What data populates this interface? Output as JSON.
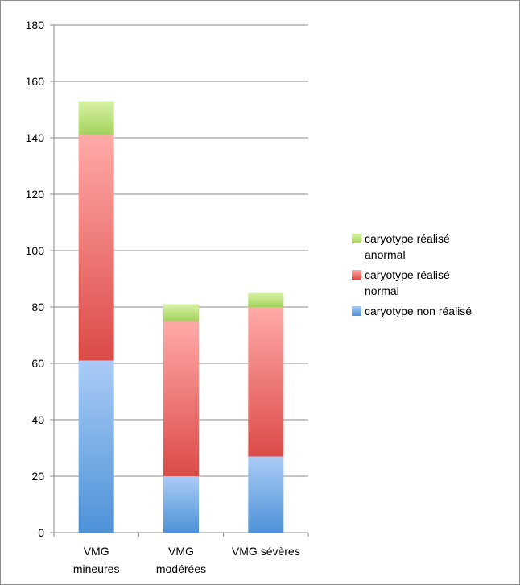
{
  "chart_data": {
    "type": "bar",
    "stacked": true,
    "categories": [
      [
        "VMG",
        "mineures"
      ],
      [
        "VMG",
        "modérées"
      ],
      [
        "VMG sévères"
      ]
    ],
    "series": [
      {
        "name": "caryotype non réalisé",
        "values": [
          61,
          20,
          27
        ],
        "color_top": "#aaccf6",
        "color_bottom": "#4d92d8"
      },
      {
        "name": "caryotype réalisé normal",
        "values": [
          80,
          55,
          53
        ],
        "color_top": "#ffaaa8",
        "color_bottom": "#dc4a47"
      },
      {
        "name": "caryotype réalisé anormal",
        "values": [
          12,
          6,
          5
        ],
        "color_top": "#d8f2a4",
        "color_bottom": "#a3d25c"
      }
    ],
    "legend": [
      {
        "series": 2,
        "lines": [
          "caryotype réalisé",
          "anormal"
        ]
      },
      {
        "series": 1,
        "lines": [
          "caryotype réalisé",
          "normal"
        ]
      },
      {
        "series": 0,
        "lines": [
          "caryotype non réalisé"
        ]
      }
    ],
    "legend_position": "right",
    "ylim": [
      0,
      180
    ],
    "yticks": [
      0,
      20,
      40,
      60,
      80,
      100,
      120,
      140,
      160,
      180
    ],
    "grid": true
  }
}
